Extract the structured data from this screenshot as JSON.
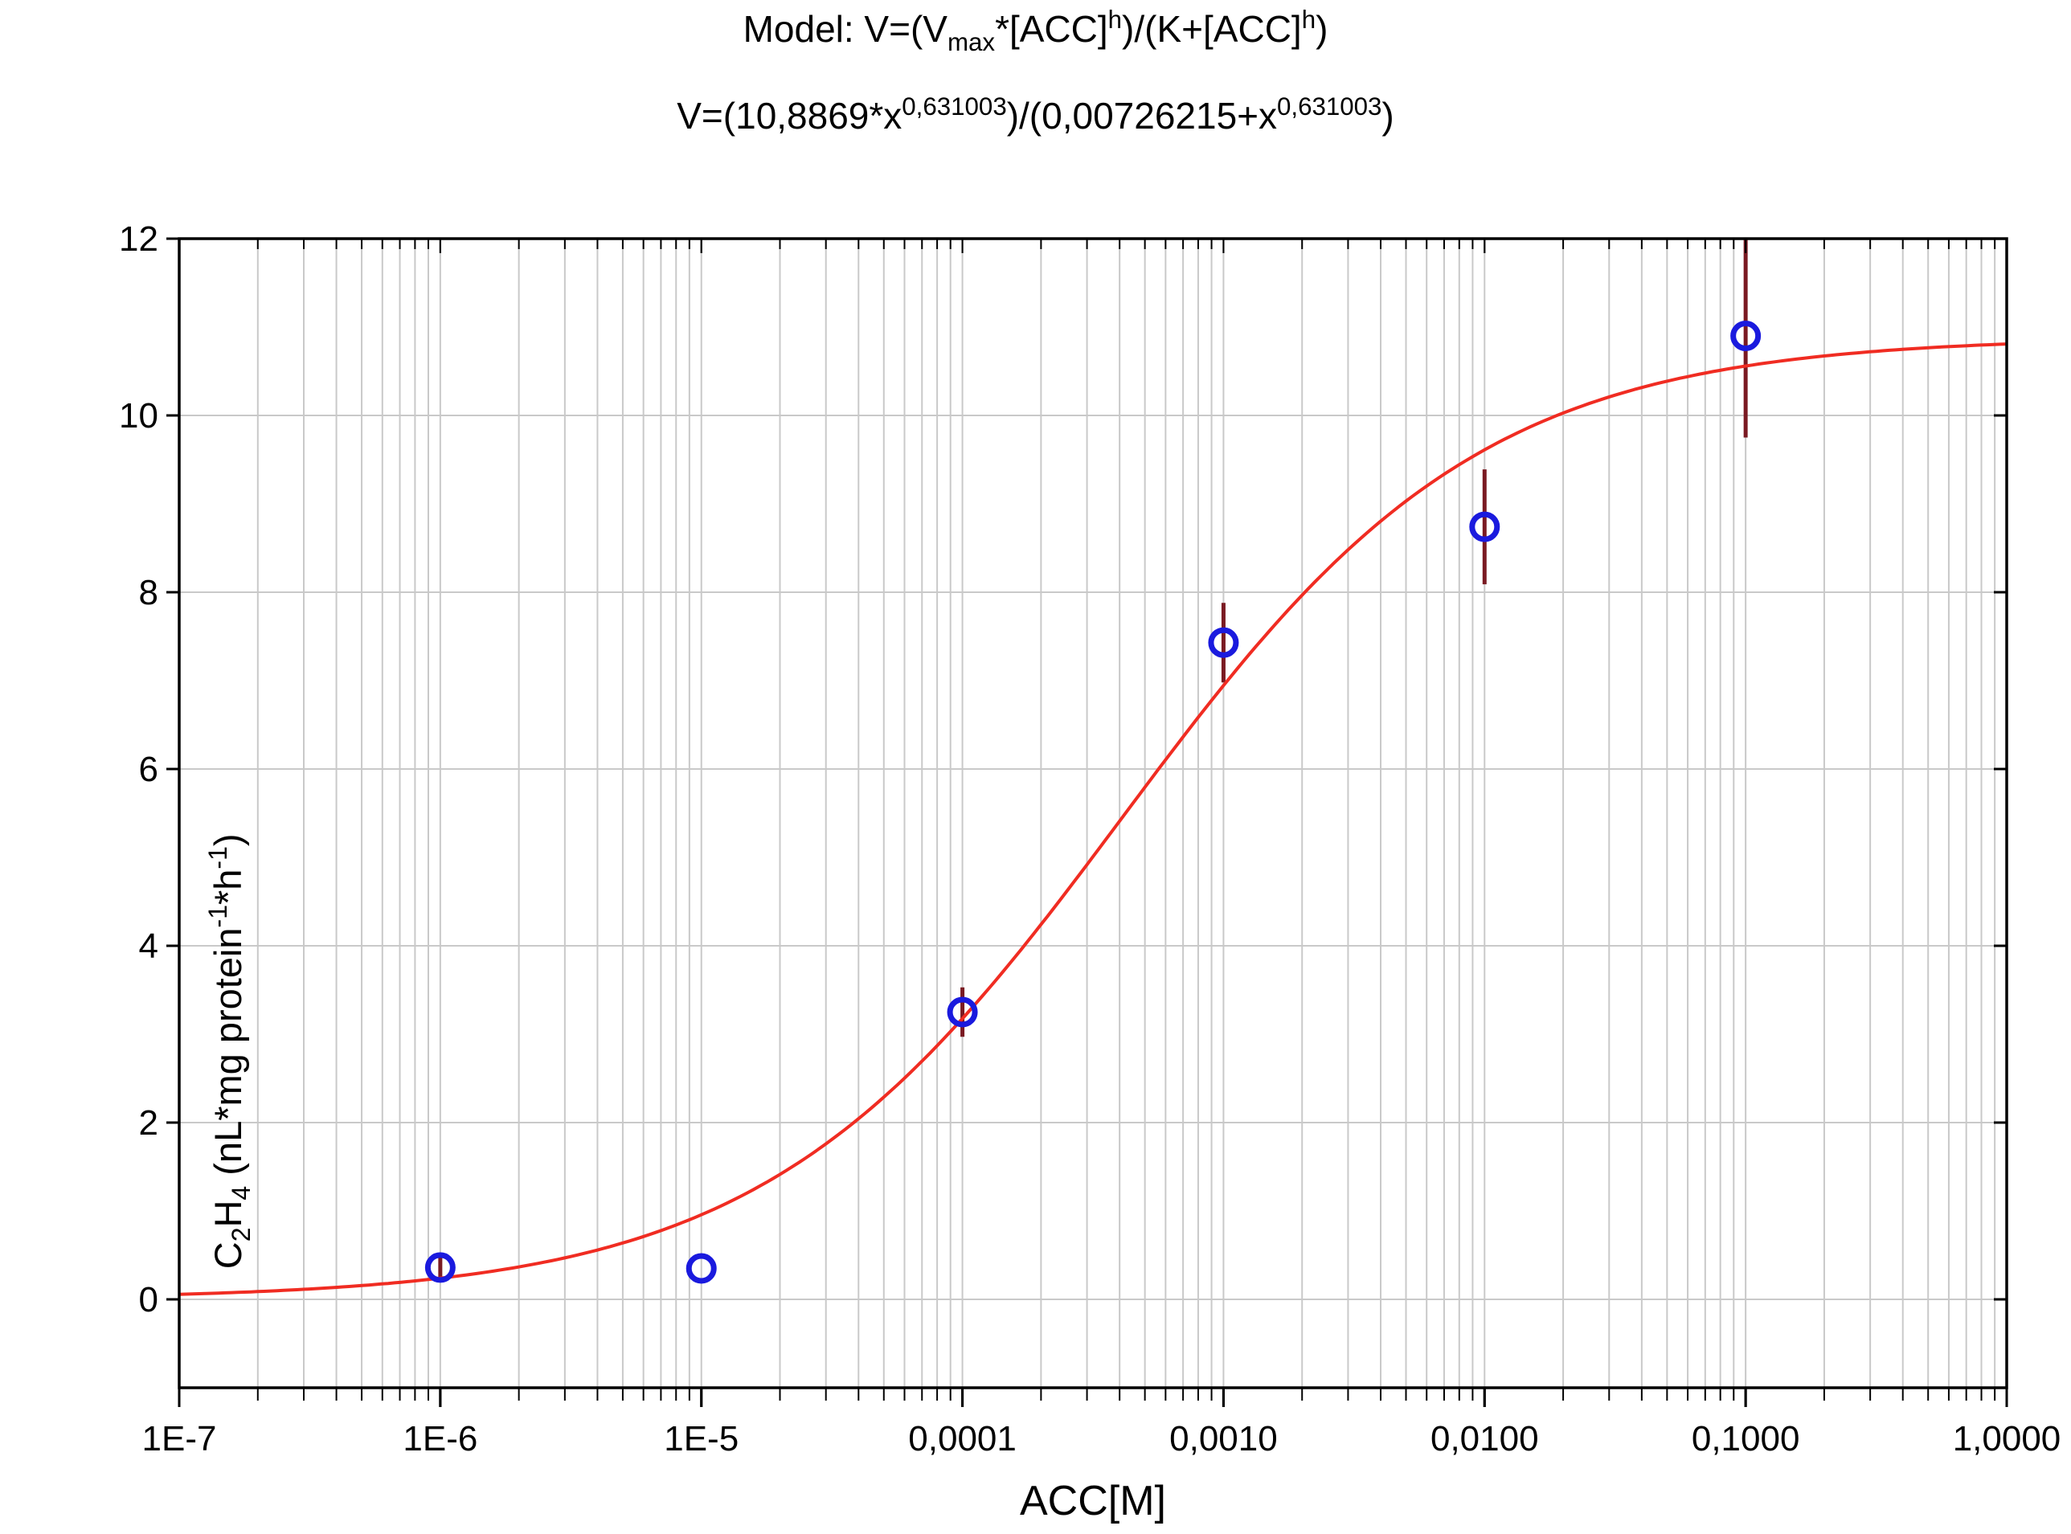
{
  "chart_data": {
    "type": "scatter",
    "title_model_text": "Model: V=(Vmax*[ACC]h)/(K+[ACC]h)",
    "title_model_segments": [
      {
        "t": "Model: V=(V",
        "s": "n"
      },
      {
        "t": "max",
        "s": "sub"
      },
      {
        "t": "*[ACC]",
        "s": "n"
      },
      {
        "t": "h",
        "s": "sup"
      },
      {
        "t": ")/(K+[ACC]",
        "s": "n"
      },
      {
        "t": "h",
        "s": "sup"
      },
      {
        "t": ")",
        "s": "n"
      }
    ],
    "title_fit_text": "V=(10,8869*x0,631003)/(0,00726215+x0,631003)",
    "title_fit_segments": [
      {
        "t": "V=(10,8869*x",
        "s": "n"
      },
      {
        "t": "0,631003",
        "s": "sup"
      },
      {
        "t": ")/(0,00726215+x",
        "s": "n"
      },
      {
        "t": "0,631003",
        "s": "sup"
      },
      {
        "t": ")",
        "s": "n"
      }
    ],
    "ylabel_text": "C2H4 (nL*mg protein-1*h-1)",
    "ylabel_segments": [
      {
        "t": "C",
        "s": "n"
      },
      {
        "t": "2",
        "s": "sub"
      },
      {
        "t": "H",
        "s": "n"
      },
      {
        "t": "4",
        "s": "sub"
      },
      {
        "t": " (nL*mg protein",
        "s": "n"
      },
      {
        "t": "-1",
        "s": "sup"
      },
      {
        "t": "*h",
        "s": "n"
      },
      {
        "t": "-1",
        "s": "sup"
      },
      {
        "t": ")",
        "s": "n"
      }
    ],
    "xlabel": "ACC[M]",
    "x_scale": "log",
    "xlog_range": [
      -7,
      0
    ],
    "ylim": [
      -1,
      12
    ],
    "x_ticks": [
      {
        "value": 1e-07,
        "label": "1E-7"
      },
      {
        "value": 1e-06,
        "label": "1E-6"
      },
      {
        "value": 1e-05,
        "label": "1E-5"
      },
      {
        "value": 0.0001,
        "label": "0,0001"
      },
      {
        "value": 0.001,
        "label": "0,0010"
      },
      {
        "value": 0.01,
        "label": "0,0100"
      },
      {
        "value": 0.1,
        "label": "0,1000"
      },
      {
        "value": 1,
        "label": "1,0000"
      }
    ],
    "y_ticks": [
      {
        "value": 0,
        "label": "0"
      },
      {
        "value": 2,
        "label": "2"
      },
      {
        "value": 4,
        "label": "4"
      },
      {
        "value": 6,
        "label": "6"
      },
      {
        "value": 8,
        "label": "8"
      },
      {
        "value": 10,
        "label": "10"
      },
      {
        "value": 12,
        "label": "12"
      }
    ],
    "minor_grid_multipliers": [
      2,
      3,
      4,
      5,
      6,
      7,
      8,
      9
    ],
    "grid": {
      "vertical_minor": true,
      "horizontal_major": true
    },
    "points": [
      {
        "x": 1e-06,
        "y": 0.36,
        "err": 0.12
      },
      {
        "x": 1e-05,
        "y": 0.35,
        "err": 0
      },
      {
        "x": 0.0001,
        "y": 3.25,
        "err": 0.28
      },
      {
        "x": 0.001,
        "y": 7.43,
        "err": 0.45
      },
      {
        "x": 0.01,
        "y": 8.74,
        "err": 0.65
      },
      {
        "x": 0.1,
        "y": 10.9,
        "err": 1.15
      }
    ],
    "fit_curve": {
      "equation": "V=(10,8869*x^0,631003)/(0,00726215+x^0,631003)",
      "vmax": 10.8869,
      "k": 0.00726215,
      "h": 0.631003
    },
    "colors": {
      "curve": "#f02c22",
      "marker": "#1a1ade",
      "error_bar": "#7a1a22",
      "grid": "#c9c9c9",
      "axis": "#000000",
      "background": "#ffffff"
    }
  }
}
